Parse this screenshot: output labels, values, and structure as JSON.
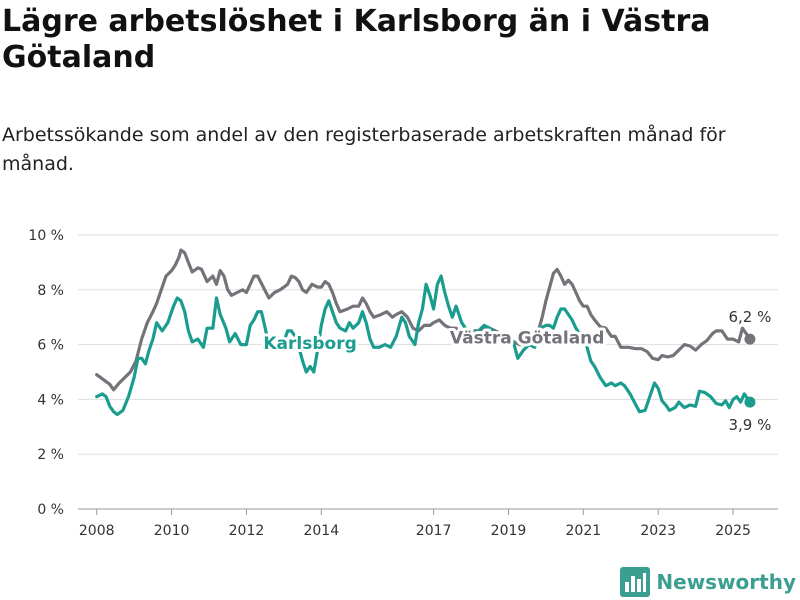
{
  "chart_data": {
    "type": "line",
    "title": "Lägre arbetslöshet i Karlsborg än i Västra Götaland",
    "subtitle": "Arbetssökande som andel av den registerbaserade arbetskraften månad för månad.",
    "ylim": [
      0,
      10
    ],
    "y_ticks": [
      0,
      2,
      4,
      6,
      8,
      10
    ],
    "y_tick_labels": [
      "0 %",
      "2 %",
      "4 %",
      "6 %",
      "8 %",
      "10 %"
    ],
    "x_ticks": [
      2008,
      2010,
      2012,
      2014,
      2017,
      2019,
      2021,
      2023,
      2025
    ],
    "x_range": [
      2007.5,
      2026.2
    ],
    "grid": "horizontal",
    "series": [
      {
        "name": "Västra Götaland",
        "color": "#75737a",
        "end_label": "6,2 %",
        "points": [
          [
            2008.0,
            4.9
          ],
          [
            2008.2,
            4.7
          ],
          [
            2008.35,
            4.55
          ],
          [
            2008.45,
            4.35
          ],
          [
            2008.6,
            4.6
          ],
          [
            2008.75,
            4.8
          ],
          [
            2008.9,
            5.0
          ],
          [
            2009.05,
            5.4
          ],
          [
            2009.2,
            6.2
          ],
          [
            2009.35,
            6.8
          ],
          [
            2009.5,
            7.2
          ],
          [
            2009.6,
            7.5
          ],
          [
            2009.75,
            8.1
          ],
          [
            2009.85,
            8.5
          ],
          [
            2010.0,
            8.7
          ],
          [
            2010.1,
            8.9
          ],
          [
            2010.2,
            9.2
          ],
          [
            2010.25,
            9.45
          ],
          [
            2010.35,
            9.35
          ],
          [
            2010.45,
            9.0
          ],
          [
            2010.55,
            8.65
          ],
          [
            2010.7,
            8.8
          ],
          [
            2010.8,
            8.75
          ],
          [
            2010.95,
            8.3
          ],
          [
            2011.1,
            8.5
          ],
          [
            2011.2,
            8.2
          ],
          [
            2011.3,
            8.7
          ],
          [
            2011.4,
            8.5
          ],
          [
            2011.5,
            8.0
          ],
          [
            2011.6,
            7.8
          ],
          [
            2011.75,
            7.9
          ],
          [
            2011.9,
            8.0
          ],
          [
            2012.0,
            7.9
          ],
          [
            2012.1,
            8.2
          ],
          [
            2012.2,
            8.5
          ],
          [
            2012.3,
            8.5
          ],
          [
            2012.45,
            8.1
          ],
          [
            2012.6,
            7.7
          ],
          [
            2012.75,
            7.9
          ],
          [
            2012.9,
            8.0
          ],
          [
            2013.0,
            8.1
          ],
          [
            2013.1,
            8.2
          ],
          [
            2013.2,
            8.5
          ],
          [
            2013.3,
            8.45
          ],
          [
            2013.4,
            8.3
          ],
          [
            2013.5,
            8.0
          ],
          [
            2013.6,
            7.9
          ],
          [
            2013.75,
            8.2
          ],
          [
            2013.9,
            8.1
          ],
          [
            2014.0,
            8.1
          ],
          [
            2014.1,
            8.3
          ],
          [
            2014.2,
            8.2
          ],
          [
            2014.3,
            7.9
          ],
          [
            2014.4,
            7.5
          ],
          [
            2014.5,
            7.2
          ],
          [
            2014.7,
            7.3
          ],
          [
            2014.85,
            7.4
          ],
          [
            2015.0,
            7.4
          ],
          [
            2015.1,
            7.7
          ],
          [
            2015.2,
            7.5
          ],
          [
            2015.3,
            7.2
          ],
          [
            2015.4,
            7.0
          ],
          [
            2015.6,
            7.1
          ],
          [
            2015.75,
            7.2
          ],
          [
            2015.9,
            7.0
          ],
          [
            2016.0,
            7.1
          ],
          [
            2016.15,
            7.2
          ],
          [
            2016.3,
            7.0
          ],
          [
            2016.45,
            6.6
          ],
          [
            2016.6,
            6.5
          ],
          [
            2016.75,
            6.7
          ],
          [
            2016.9,
            6.7
          ],
          [
            2017.0,
            6.8
          ],
          [
            2017.15,
            6.9
          ],
          [
            2017.3,
            6.7
          ],
          [
            2017.45,
            6.6
          ],
          [
            2017.6,
            6.6
          ],
          [
            2017.75,
            6.4
          ],
          [
            2017.9,
            6.5
          ],
          [
            2018.05,
            6.5
          ],
          [
            2018.2,
            6.5
          ],
          [
            2018.35,
            6.6
          ],
          [
            2018.5,
            6.6
          ],
          [
            2018.65,
            6.5
          ],
          [
            2018.8,
            6.4
          ],
          [
            2019.0,
            6.1
          ],
          [
            2019.15,
            6.1
          ],
          [
            2019.3,
            6.0
          ],
          [
            2019.5,
            6.0
          ],
          [
            2019.65,
            6.2
          ],
          [
            2019.8,
            6.5
          ],
          [
            2019.9,
            7.0
          ],
          [
            2020.0,
            7.6
          ],
          [
            2020.1,
            8.1
          ],
          [
            2020.2,
            8.6
          ],
          [
            2020.3,
            8.75
          ],
          [
            2020.4,
            8.5
          ],
          [
            2020.5,
            8.2
          ],
          [
            2020.6,
            8.35
          ],
          [
            2020.7,
            8.2
          ],
          [
            2020.8,
            7.9
          ],
          [
            2020.9,
            7.6
          ],
          [
            2021.0,
            7.4
          ],
          [
            2021.1,
            7.4
          ],
          [
            2021.2,
            7.1
          ],
          [
            2021.3,
            6.9
          ],
          [
            2021.45,
            6.65
          ],
          [
            2021.6,
            6.6
          ],
          [
            2021.75,
            6.3
          ],
          [
            2021.85,
            6.3
          ],
          [
            2022.0,
            5.9
          ],
          [
            2022.2,
            5.9
          ],
          [
            2022.4,
            5.85
          ],
          [
            2022.55,
            5.85
          ],
          [
            2022.7,
            5.75
          ],
          [
            2022.85,
            5.5
          ],
          [
            2023.0,
            5.45
          ],
          [
            2023.1,
            5.6
          ],
          [
            2023.25,
            5.55
          ],
          [
            2023.4,
            5.6
          ],
          [
            2023.55,
            5.8
          ],
          [
            2023.7,
            6.0
          ],
          [
            2023.85,
            5.95
          ],
          [
            2024.0,
            5.8
          ],
          [
            2024.15,
            6.0
          ],
          [
            2024.3,
            6.15
          ],
          [
            2024.45,
            6.4
          ],
          [
            2024.55,
            6.5
          ],
          [
            2024.7,
            6.5
          ],
          [
            2024.85,
            6.2
          ],
          [
            2025.0,
            6.2
          ],
          [
            2025.15,
            6.1
          ],
          [
            2025.25,
            6.6
          ],
          [
            2025.35,
            6.4
          ],
          [
            2025.45,
            6.2
          ]
        ]
      },
      {
        "name": "Karlsborg",
        "color": "#1a9d8f",
        "end_label": "3,9 %",
        "points": [
          [
            2008.0,
            4.1
          ],
          [
            2008.15,
            4.2
          ],
          [
            2008.25,
            4.1
          ],
          [
            2008.35,
            3.75
          ],
          [
            2008.45,
            3.55
          ],
          [
            2008.55,
            3.45
          ],
          [
            2008.7,
            3.6
          ],
          [
            2008.85,
            4.1
          ],
          [
            2009.0,
            4.8
          ],
          [
            2009.1,
            5.5
          ],
          [
            2009.2,
            5.5
          ],
          [
            2009.3,
            5.3
          ],
          [
            2009.4,
            5.8
          ],
          [
            2009.5,
            6.2
          ],
          [
            2009.6,
            6.8
          ],
          [
            2009.75,
            6.5
          ],
          [
            2009.9,
            6.8
          ],
          [
            2010.05,
            7.4
          ],
          [
            2010.15,
            7.7
          ],
          [
            2010.25,
            7.6
          ],
          [
            2010.35,
            7.2
          ],
          [
            2010.45,
            6.5
          ],
          [
            2010.55,
            6.1
          ],
          [
            2010.7,
            6.2
          ],
          [
            2010.85,
            5.9
          ],
          [
            2010.95,
            6.6
          ],
          [
            2011.1,
            6.6
          ],
          [
            2011.2,
            7.7
          ],
          [
            2011.3,
            7.1
          ],
          [
            2011.45,
            6.6
          ],
          [
            2011.55,
            6.1
          ],
          [
            2011.7,
            6.4
          ],
          [
            2011.85,
            6.0
          ],
          [
            2012.0,
            6.0
          ],
          [
            2012.1,
            6.7
          ],
          [
            2012.2,
            6.9
          ],
          [
            2012.3,
            7.2
          ],
          [
            2012.4,
            7.2
          ],
          [
            2012.5,
            6.6
          ],
          [
            2012.6,
            6.0
          ],
          [
            2012.75,
            5.9
          ],
          [
            2012.9,
            6.0
          ],
          [
            2013.0,
            6.1
          ],
          [
            2013.1,
            6.5
          ],
          [
            2013.2,
            6.5
          ],
          [
            2013.3,
            6.3
          ],
          [
            2013.4,
            5.9
          ],
          [
            2013.5,
            5.4
          ],
          [
            2013.6,
            5.0
          ],
          [
            2013.7,
            5.2
          ],
          [
            2013.8,
            5.0
          ],
          [
            2013.9,
            5.8
          ],
          [
            2014.0,
            6.7
          ],
          [
            2014.1,
            7.3
          ],
          [
            2014.2,
            7.6
          ],
          [
            2014.3,
            7.2
          ],
          [
            2014.4,
            6.8
          ],
          [
            2014.5,
            6.6
          ],
          [
            2014.65,
            6.5
          ],
          [
            2014.75,
            6.8
          ],
          [
            2014.85,
            6.6
          ],
          [
            2015.0,
            6.8
          ],
          [
            2015.1,
            7.2
          ],
          [
            2015.2,
            6.8
          ],
          [
            2015.3,
            6.2
          ],
          [
            2015.4,
            5.9
          ],
          [
            2015.55,
            5.9
          ],
          [
            2015.7,
            6.0
          ],
          [
            2015.85,
            5.9
          ],
          [
            2016.0,
            6.3
          ],
          [
            2016.15,
            7.0
          ],
          [
            2016.25,
            6.8
          ],
          [
            2016.35,
            6.3
          ],
          [
            2016.5,
            6.0
          ],
          [
            2016.6,
            6.8
          ],
          [
            2016.7,
            7.3
          ],
          [
            2016.8,
            8.2
          ],
          [
            2016.9,
            7.8
          ],
          [
            2017.0,
            7.3
          ],
          [
            2017.1,
            8.2
          ],
          [
            2017.2,
            8.5
          ],
          [
            2017.3,
            7.9
          ],
          [
            2017.4,
            7.4
          ],
          [
            2017.5,
            7.0
          ],
          [
            2017.6,
            7.4
          ],
          [
            2017.75,
            6.8
          ],
          [
            2017.9,
            6.5
          ],
          [
            2018.05,
            6.4
          ],
          [
            2018.2,
            6.5
          ],
          [
            2018.35,
            6.7
          ],
          [
            2018.5,
            6.6
          ],
          [
            2018.65,
            6.4
          ],
          [
            2018.8,
            6.2
          ],
          [
            2019.0,
            6.4
          ],
          [
            2019.15,
            6.0
          ],
          [
            2019.25,
            5.5
          ],
          [
            2019.4,
            5.8
          ],
          [
            2019.55,
            6.0
          ],
          [
            2019.7,
            5.9
          ],
          [
            2019.85,
            6.6
          ],
          [
            2020.0,
            6.7
          ],
          [
            2020.1,
            6.7
          ],
          [
            2020.2,
            6.6
          ],
          [
            2020.3,
            7.0
          ],
          [
            2020.4,
            7.3
          ],
          [
            2020.5,
            7.3
          ],
          [
            2020.6,
            7.1
          ],
          [
            2020.7,
            6.9
          ],
          [
            2020.8,
            6.6
          ],
          [
            2020.9,
            6.4
          ],
          [
            2021.0,
            6.3
          ],
          [
            2021.1,
            5.9
          ],
          [
            2021.2,
            5.4
          ],
          [
            2021.3,
            5.2
          ],
          [
            2021.45,
            4.8
          ],
          [
            2021.6,
            4.5
          ],
          [
            2021.75,
            4.6
          ],
          [
            2021.85,
            4.5
          ],
          [
            2022.0,
            4.6
          ],
          [
            2022.1,
            4.5
          ],
          [
            2022.25,
            4.2
          ],
          [
            2022.4,
            3.8
          ],
          [
            2022.5,
            3.55
          ],
          [
            2022.65,
            3.6
          ],
          [
            2022.8,
            4.2
          ],
          [
            2022.9,
            4.6
          ],
          [
            2023.0,
            4.4
          ],
          [
            2023.1,
            3.95
          ],
          [
            2023.2,
            3.8
          ],
          [
            2023.3,
            3.6
          ],
          [
            2023.45,
            3.7
          ],
          [
            2023.55,
            3.9
          ],
          [
            2023.7,
            3.7
          ],
          [
            2023.85,
            3.8
          ],
          [
            2024.0,
            3.75
          ],
          [
            2024.1,
            4.3
          ],
          [
            2024.25,
            4.25
          ],
          [
            2024.4,
            4.1
          ],
          [
            2024.55,
            3.85
          ],
          [
            2024.7,
            3.8
          ],
          [
            2024.8,
            3.95
          ],
          [
            2024.9,
            3.7
          ],
          [
            2025.0,
            4.0
          ],
          [
            2025.1,
            4.1
          ],
          [
            2025.2,
            3.9
          ],
          [
            2025.3,
            4.2
          ],
          [
            2025.4,
            4.0
          ],
          [
            2025.45,
            3.9
          ]
        ]
      }
    ]
  },
  "branding": {
    "name": "Newsworthy",
    "color": "#3a9e91",
    "icon": "bar-chart-logo-icon"
  }
}
